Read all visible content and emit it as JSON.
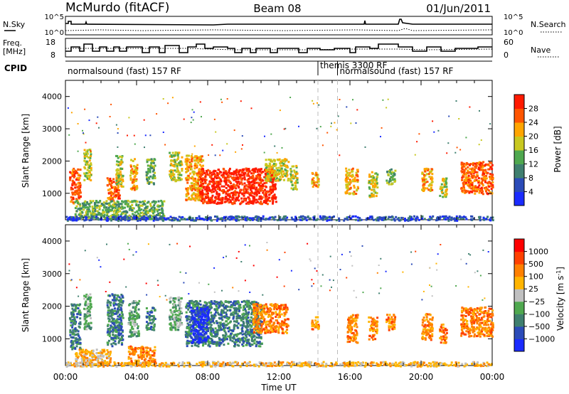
{
  "header": {
    "station": "McMurdo (fitACF)",
    "beam": "Beam 08",
    "date": "01/Jun/2011"
  },
  "strip_panels": {
    "nsky": {
      "left_label": "N.Sky",
      "right_label": "N.Search",
      "left_ticks": [
        "10^5",
        "10^0"
      ],
      "right_ticks": [
        "10^5",
        "10^0"
      ]
    },
    "freq": {
      "left_label_line1": "Freq.",
      "left_label_line2": "[MHz]",
      "right_label": "Nave",
      "left_ticks": [
        "18",
        "8"
      ],
      "right_ticks": [
        "60",
        "0"
      ]
    },
    "cpid": {
      "label": "CPID",
      "modes": [
        {
          "name": "normalsound (fast) 157 RF",
          "start_hour": 0,
          "end_hour": 14.2
        },
        {
          "name": "themis 3300 RF",
          "start_hour": 14.2,
          "end_hour": 15.3
        },
        {
          "name": "normalsound (fast) 157 RF",
          "start_hour": 15.3,
          "end_hour": 24
        }
      ]
    }
  },
  "chart_data": [
    {
      "type": "heatmap",
      "name": "power",
      "ylabel": "Slant Range [km]",
      "xlabel": "Time UT",
      "xlim": [
        0,
        24
      ],
      "ylim": [
        180,
        4500
      ],
      "x_ticks": [
        "00:00",
        "04:00",
        "08:00",
        "12:00",
        "16:00",
        "20:00",
        "00:00"
      ],
      "y_ticks": [
        1000,
        2000,
        3000,
        4000
      ],
      "colorbar": {
        "label": "Power [dB]",
        "ticks": [
          "4",
          "8",
          "12",
          "16",
          "20",
          "24",
          "28"
        ],
        "colors": [
          "#1a2bff",
          "#2b4bb8",
          "#3f7f6f",
          "#4fa84f",
          "#c8c820",
          "#ffa500",
          "#ff5500",
          "#ff1a00"
        ]
      },
      "echo_regions": [
        {
          "t0": 0.2,
          "t1": 0.8,
          "r0": 700,
          "r1": 1800,
          "level": 6
        },
        {
          "t0": 1.0,
          "t1": 1.4,
          "r0": 1400,
          "r1": 2400,
          "level": 4
        },
        {
          "t0": 2.3,
          "t1": 3.0,
          "r0": 800,
          "r1": 1500,
          "level": 6
        },
        {
          "t0": 2.8,
          "t1": 3.2,
          "r0": 1200,
          "r1": 2200,
          "level": 4
        },
        {
          "t0": 3.6,
          "t1": 4.0,
          "r0": 1100,
          "r1": 2100,
          "level": 5
        },
        {
          "t0": 4.5,
          "t1": 5.0,
          "r0": 1300,
          "r1": 2100,
          "level": 3
        },
        {
          "t0": 5.8,
          "t1": 6.5,
          "r0": 1400,
          "r1": 2300,
          "level": 4
        },
        {
          "t0": 6.7,
          "t1": 7.7,
          "r0": 800,
          "r1": 2200,
          "level": 5
        },
        {
          "t0": 7.5,
          "t1": 11.8,
          "r0": 700,
          "r1": 1800,
          "level": 7
        },
        {
          "t0": 11.2,
          "t1": 12.5,
          "r0": 1400,
          "r1": 2100,
          "level": 4
        },
        {
          "t0": 12.6,
          "t1": 13.0,
          "r0": 1100,
          "r1": 1900,
          "level": 4
        },
        {
          "t0": 13.8,
          "t1": 14.2,
          "r0": 1200,
          "r1": 1700,
          "level": 5
        },
        {
          "t0": 15.7,
          "t1": 16.4,
          "r0": 1000,
          "r1": 1800,
          "level": 5
        },
        {
          "t0": 17.0,
          "t1": 17.5,
          "r0": 900,
          "r1": 1700,
          "level": 4
        },
        {
          "t0": 18.0,
          "t1": 18.5,
          "r0": 1300,
          "r1": 1800,
          "level": 3
        },
        {
          "t0": 20.0,
          "t1": 20.6,
          "r0": 1100,
          "r1": 1800,
          "level": 5
        },
        {
          "t0": 21.0,
          "t1": 21.4,
          "r0": 900,
          "r1": 1500,
          "level": 4
        },
        {
          "t0": 22.2,
          "t1": 24.0,
          "r0": 1000,
          "r1": 2000,
          "level": 6
        },
        {
          "t0": 0.5,
          "t1": 5.5,
          "r0": 230,
          "r1": 800,
          "level": 3
        },
        {
          "t0": 0.0,
          "t1": 24.0,
          "r0": 180,
          "r1": 320,
          "level": 1
        }
      ]
    },
    {
      "type": "heatmap",
      "name": "velocity",
      "ylabel": "Slant Range [km]",
      "xlabel": "Time UT",
      "xlim": [
        0,
        24
      ],
      "ylim": [
        180,
        4500
      ],
      "x_ticks": [
        "00:00",
        "04:00",
        "08:00",
        "12:00",
        "16:00",
        "20:00",
        "00:00"
      ],
      "y_ticks": [
        1000,
        2000,
        3000,
        4000
      ],
      "colorbar": {
        "label": "Velocity [m s",
        "label_sup": "-1",
        "label_end": "]",
        "ticks": [
          "1000",
          "500",
          "100",
          "25",
          "−25",
          "−100",
          "−500",
          "−1000"
        ],
        "colors": [
          "#1a2bff",
          "#2b4bb8",
          "#3f7f6f",
          "#4fa84f",
          "#c0c0c0",
          "#ffb400",
          "#ff8000",
          "#ff4000",
          "#ff0000"
        ]
      },
      "echo_regions": [
        {
          "t0": 0.2,
          "t1": 0.8,
          "r0": 700,
          "r1": 2100,
          "level": 2
        },
        {
          "t0": 1.0,
          "t1": 1.4,
          "r0": 1300,
          "r1": 2400,
          "level": 3
        },
        {
          "t0": 2.3,
          "t1": 3.2,
          "r0": 800,
          "r1": 2400,
          "level": 2
        },
        {
          "t0": 3.5,
          "t1": 4.1,
          "r0": 1100,
          "r1": 2200,
          "level": 3
        },
        {
          "t0": 3.5,
          "t1": 5.0,
          "r0": 250,
          "r1": 800,
          "level": 6
        },
        {
          "t0": 4.5,
          "t1": 5.0,
          "r0": 1300,
          "r1": 2000,
          "level": 2
        },
        {
          "t0": 5.8,
          "t1": 6.5,
          "r0": 1300,
          "r1": 2300,
          "level": 3
        },
        {
          "t0": 6.7,
          "t1": 11.0,
          "r0": 800,
          "r1": 2200,
          "level": 2
        },
        {
          "t0": 7.0,
          "t1": 8.0,
          "r0": 900,
          "r1": 2000,
          "level": 0
        },
        {
          "t0": 10.5,
          "t1": 12.5,
          "r0": 1200,
          "r1": 2100,
          "level": 6
        },
        {
          "t0": 13.8,
          "t1": 14.2,
          "r0": 1300,
          "r1": 1700,
          "level": 6
        },
        {
          "t0": 15.8,
          "t1": 16.4,
          "r0": 900,
          "r1": 1800,
          "level": 6
        },
        {
          "t0": 17.0,
          "t1": 17.5,
          "r0": 1000,
          "r1": 1700,
          "level": 6
        },
        {
          "t0": 18.0,
          "t1": 18.5,
          "r0": 1300,
          "r1": 1800,
          "level": 6
        },
        {
          "t0": 20.0,
          "t1": 20.6,
          "r0": 1000,
          "r1": 1800,
          "level": 6
        },
        {
          "t0": 21.0,
          "t1": 21.4,
          "r0": 900,
          "r1": 1500,
          "level": 6
        },
        {
          "t0": 22.2,
          "t1": 24.0,
          "r0": 1100,
          "r1": 2000,
          "level": 6
        },
        {
          "t0": 0.5,
          "t1": 2.5,
          "r0": 250,
          "r1": 700,
          "level": 5
        },
        {
          "t0": 0.0,
          "t1": 24.0,
          "r0": 180,
          "r1": 320,
          "level": 5
        }
      ]
    }
  ]
}
